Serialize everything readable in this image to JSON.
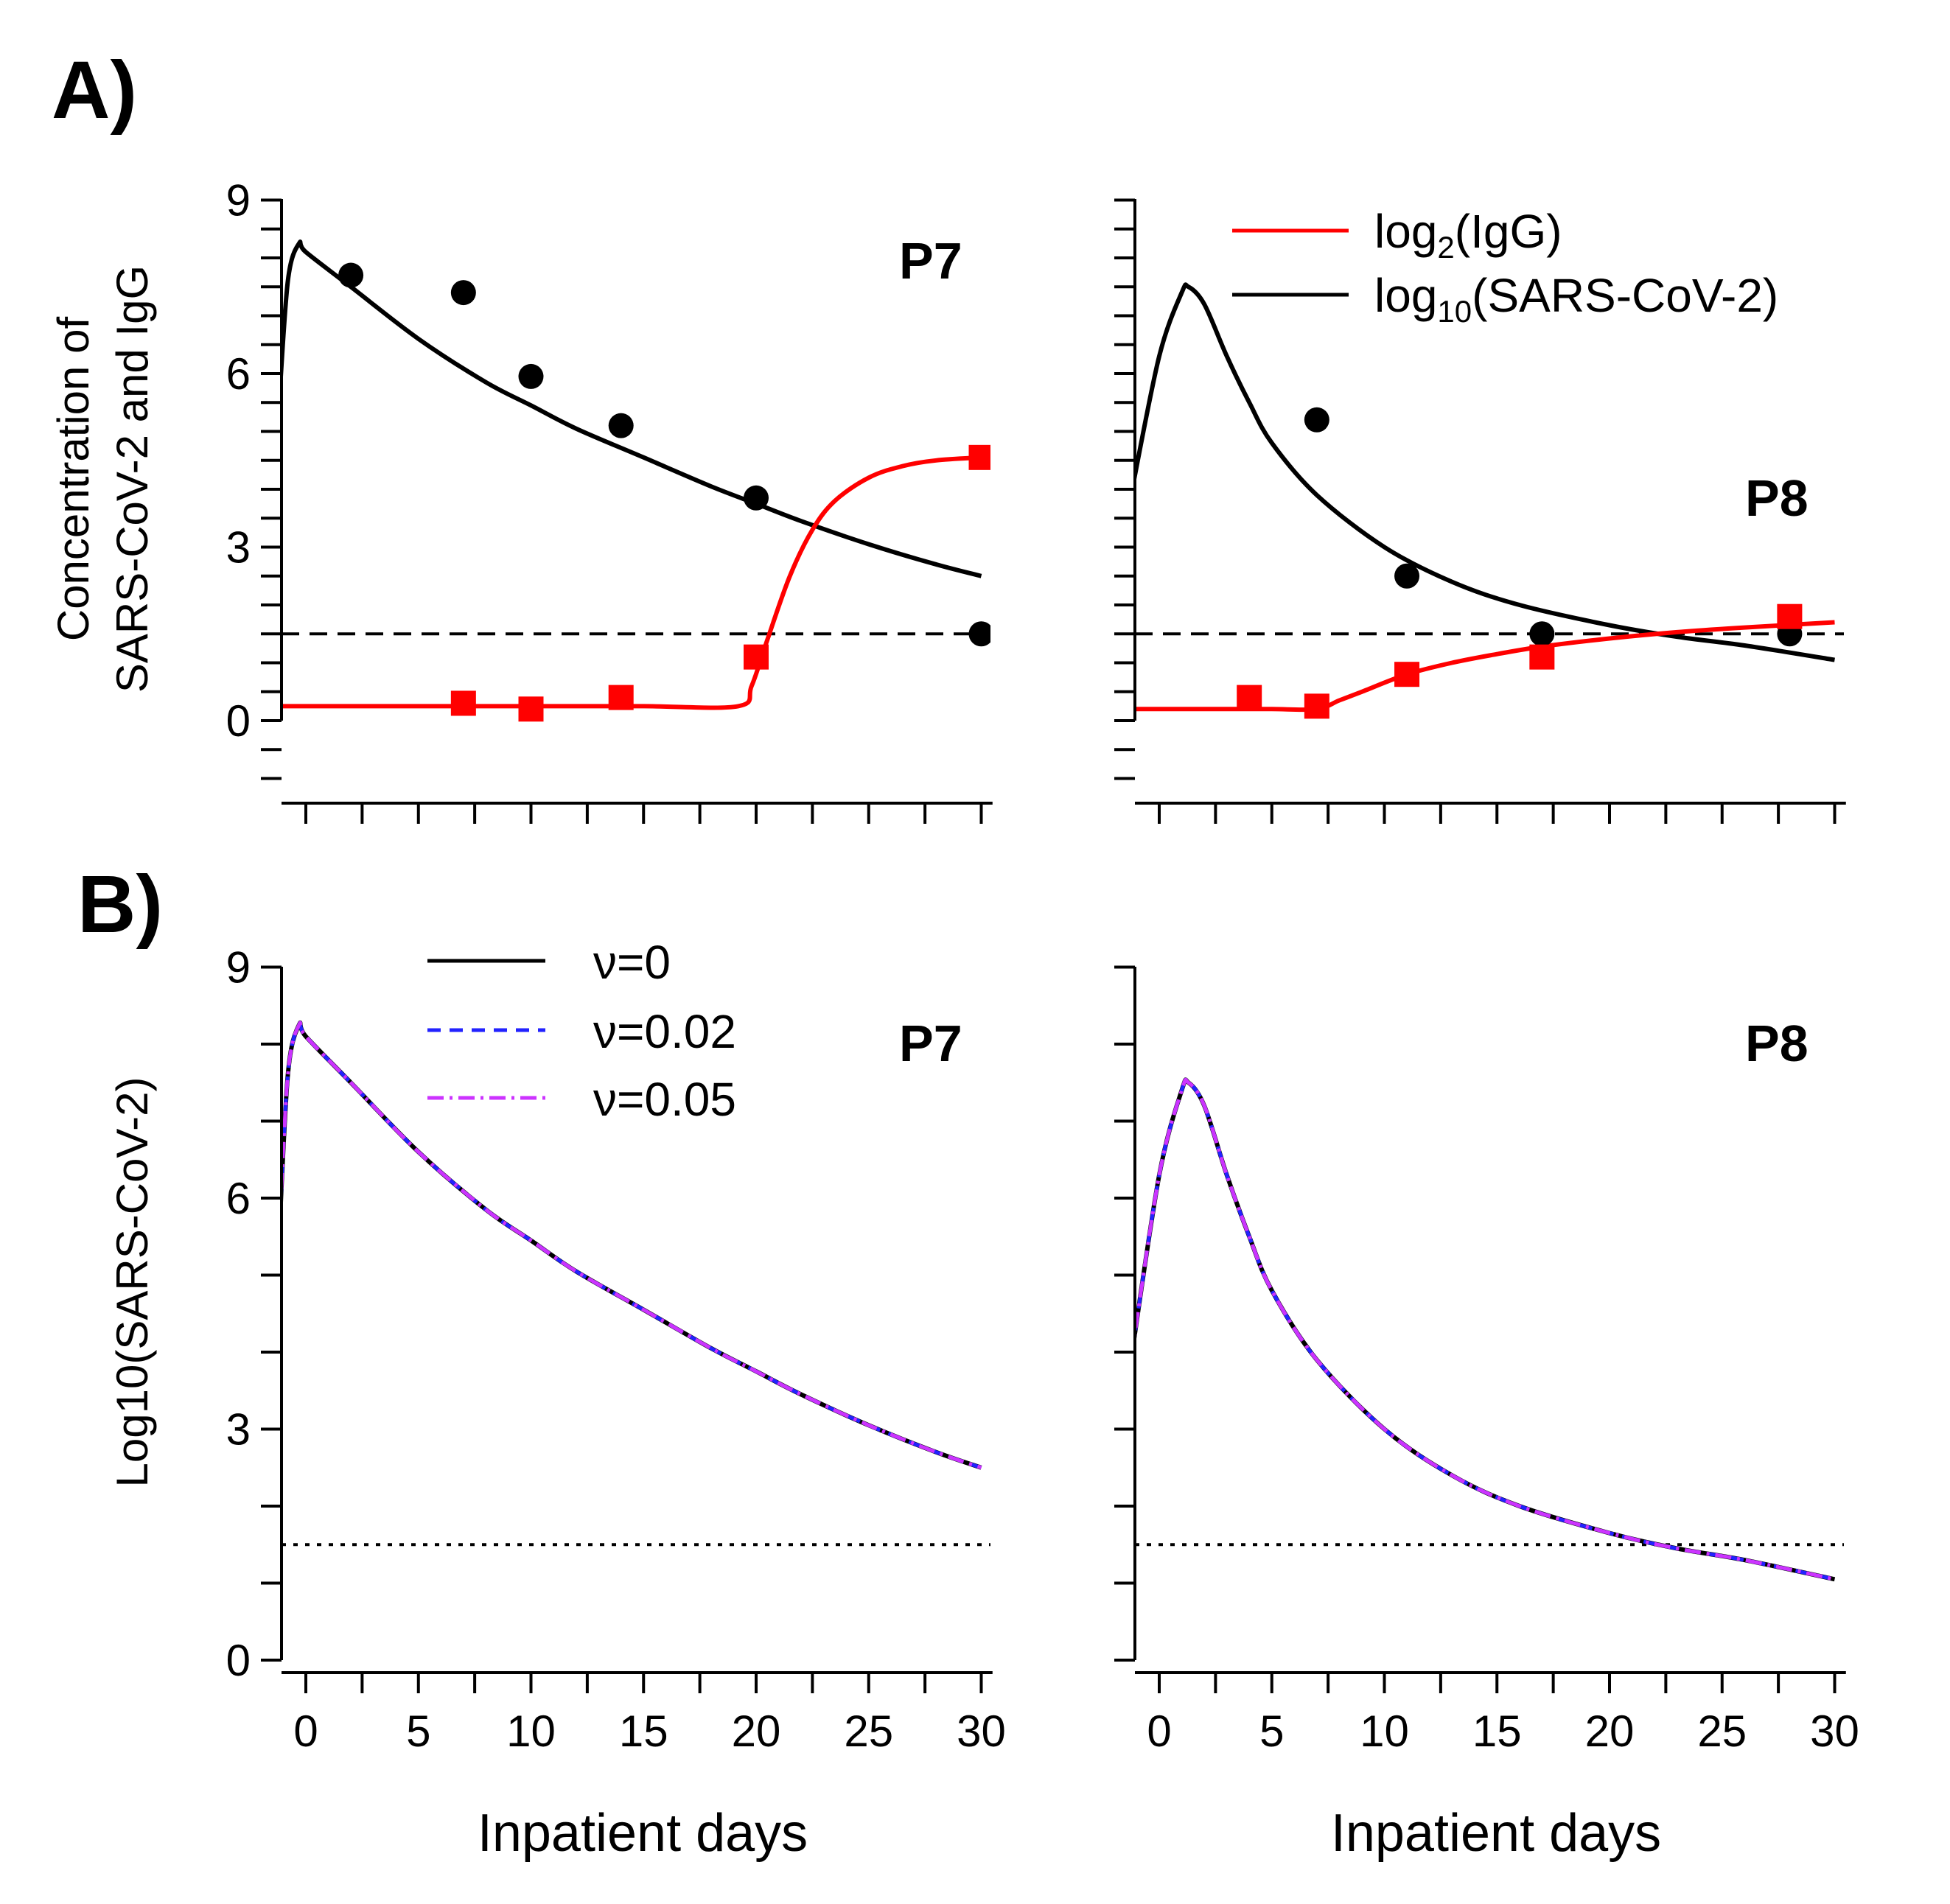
{
  "chart_data": [
    {
      "panel": "A",
      "patient_label": "P7",
      "type": "line",
      "ylabel_lines": [
        "Concentration of",
        "SARS-CoV-2 and IgG"
      ],
      "xlim": [
        -1.5,
        30.5
      ],
      "ylim": [
        -1.5,
        9
      ],
      "yticks": [
        0,
        3,
        6,
        9
      ],
      "threshold": 1.5,
      "series": [
        {
          "name": "log10(SARS-CoV-2) model",
          "color": "#000000",
          "style": "solid",
          "x": [
            -1.2,
            -0.8,
            -0.3,
            0,
            2,
            5,
            8,
            10,
            12,
            15,
            18,
            20,
            22,
            25,
            28,
            30
          ],
          "y": [
            5.4,
            7.6,
            8.25,
            8.1,
            7.5,
            6.6,
            5.85,
            5.45,
            5.05,
            4.55,
            4.05,
            3.75,
            3.45,
            3.05,
            2.7,
            2.5
          ]
        },
        {
          "name": "log2(IgG) model",
          "color": "#ff0000",
          "style": "solid",
          "x": [
            -1.2,
            0,
            5,
            10,
            15,
            19.2,
            19.8,
            20.5,
            21.5,
            22.5,
            23.5,
            25,
            26.5,
            28,
            30
          ],
          "y": [
            0.25,
            0.25,
            0.25,
            0.25,
            0.25,
            0.25,
            0.6,
            1.4,
            2.5,
            3.3,
            3.8,
            4.2,
            4.4,
            4.5,
            4.55
          ]
        }
      ],
      "virus_data": {
        "x": [
          2,
          7,
          10,
          14,
          20,
          30
        ],
        "y": [
          7.7,
          7.4,
          5.95,
          5.1,
          3.85,
          1.5
        ]
      },
      "igg_data": {
        "x": [
          7,
          10,
          14,
          20,
          30
        ],
        "y": [
          0.3,
          0.2,
          0.4,
          1.1,
          4.55
        ]
      }
    },
    {
      "panel": "A",
      "patient_label": "P8",
      "type": "line",
      "xlim": [
        -1.5,
        30.5
      ],
      "ylim": [
        -1.5,
        9
      ],
      "yticks": [
        0,
        3,
        6,
        9
      ],
      "threshold": 1.5,
      "legend": [
        {
          "label_base": "log",
          "label_sub": "2",
          "label_rest": "(IgG)",
          "color": "#ff0000"
        },
        {
          "label_base": "log",
          "label_sub": "10",
          "label_rest": "(SARS-CoV-2)",
          "color": "#000000"
        }
      ],
      "series": [
        {
          "name": "log10(SARS-CoV-2) model",
          "color": "#000000",
          "style": "solid",
          "x": [
            -1.2,
            0,
            1,
            1.3,
            2,
            3,
            4,
            5,
            7,
            10,
            13,
            16,
            20,
            23,
            26,
            30
          ],
          "y": [
            4,
            6.3,
            7.4,
            7.5,
            7.2,
            6.3,
            5.5,
            4.8,
            3.9,
            3.0,
            2.4,
            2.0,
            1.65,
            1.45,
            1.3,
            1.05
          ]
        },
        {
          "name": "log2(IgG) model",
          "color": "#ff0000",
          "style": "solid",
          "x": [
            -1.2,
            3,
            5,
            7,
            8,
            9,
            11,
            13,
            15,
            17,
            20,
            23,
            26,
            30
          ],
          "y": [
            0.2,
            0.2,
            0.2,
            0.2,
            0.35,
            0.5,
            0.8,
            1.0,
            1.15,
            1.28,
            1.42,
            1.53,
            1.61,
            1.7
          ]
        }
      ],
      "virus_data": {
        "x": [
          7,
          11,
          17,
          28
        ],
        "y": [
          5.2,
          2.5,
          1.5,
          1.5
        ]
      },
      "igg_data": {
        "x": [
          4,
          7,
          11,
          17,
          28
        ],
        "y": [
          0.4,
          0.25,
          0.8,
          1.1,
          1.8
        ]
      }
    },
    {
      "panel": "B",
      "patient_label": "P7",
      "type": "line",
      "ylabel": "Log10(SARS-CoV-2)",
      "xlabel": "Inpatient days",
      "xlim": [
        -1.5,
        30.5
      ],
      "ylim": [
        0,
        9
      ],
      "xticks": [
        0,
        5,
        10,
        15,
        20,
        25,
        30
      ],
      "yticks": [
        0,
        3,
        6,
        9
      ],
      "threshold": 1.5,
      "legend": [
        {
          "label": "ν=0",
          "color": "#000000",
          "style": "solid"
        },
        {
          "label": "ν=0.02",
          "color": "#2222ff",
          "style": "dashed"
        },
        {
          "label": "ν=0.05",
          "color": "#cc33ff",
          "style": "dashdot"
        }
      ],
      "x": [
        -1.2,
        -0.8,
        -0.3,
        0,
        2,
        5,
        8,
        10,
        12,
        15,
        18,
        20,
        22,
        25,
        28,
        30
      ],
      "y": [
        5.4,
        7.6,
        8.25,
        8.1,
        7.5,
        6.6,
        5.85,
        5.45,
        5.05,
        4.55,
        4.05,
        3.75,
        3.45,
        3.05,
        2.7,
        2.5
      ]
    },
    {
      "panel": "B",
      "patient_label": "P8",
      "type": "line",
      "xlabel": "Inpatient days",
      "xlim": [
        -1.5,
        30.5
      ],
      "ylim": [
        0,
        9
      ],
      "xticks": [
        0,
        5,
        10,
        15,
        20,
        25,
        30
      ],
      "yticks": [
        0,
        3,
        6,
        9
      ],
      "threshold": 1.5,
      "x": [
        -1.2,
        0,
        1,
        1.3,
        2,
        3,
        4,
        5,
        7,
        10,
        13,
        16,
        20,
        23,
        26,
        30
      ],
      "y": [
        4,
        6.3,
        7.4,
        7.5,
        7.2,
        6.3,
        5.5,
        4.8,
        3.9,
        3.0,
        2.4,
        2.0,
        1.65,
        1.45,
        1.3,
        1.05
      ]
    }
  ],
  "panel_letters": {
    "a": "A)",
    "b": "B)"
  }
}
